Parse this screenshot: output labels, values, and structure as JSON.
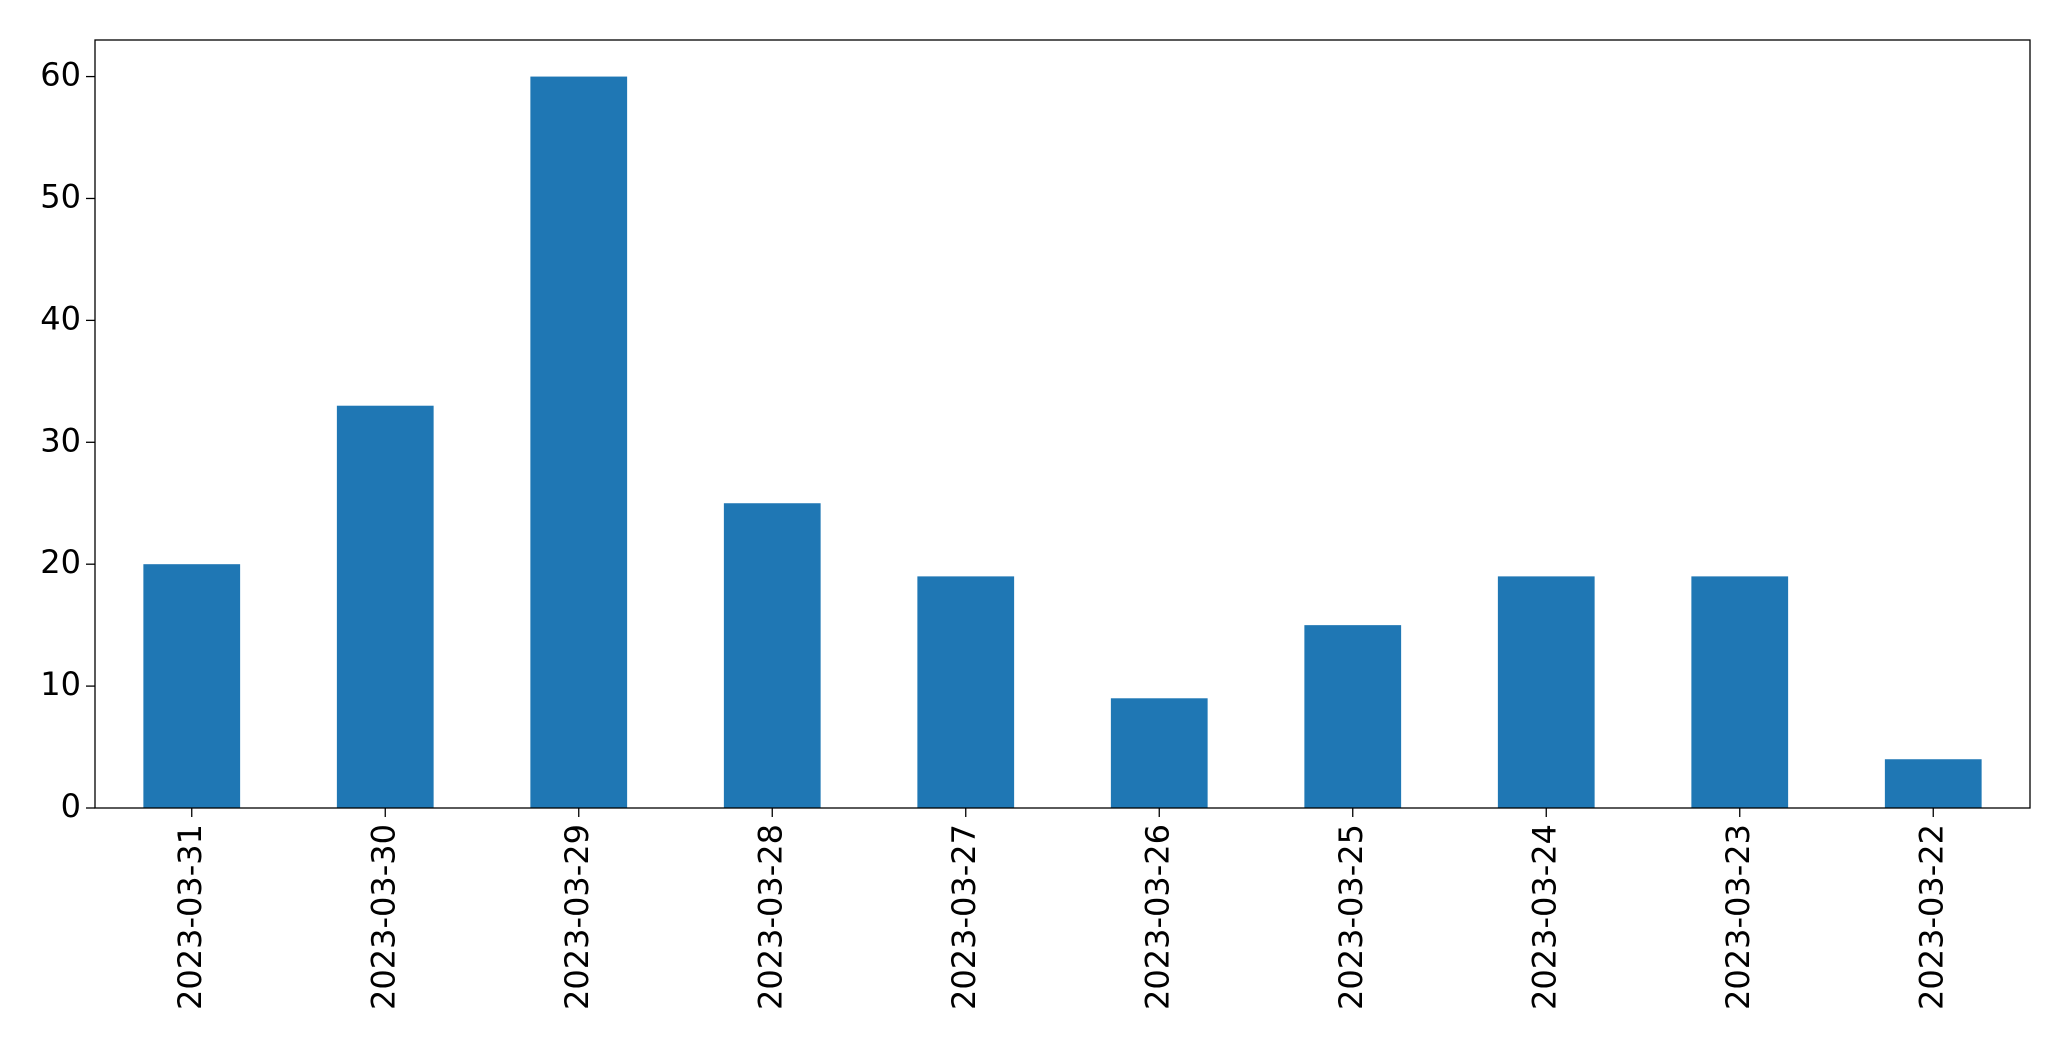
{
  "chart_data": {
    "type": "bar",
    "categories": [
      "2023-03-31",
      "2023-03-30",
      "2023-03-29",
      "2023-03-28",
      "2023-03-27",
      "2023-03-26",
      "2023-03-25",
      "2023-03-24",
      "2023-03-23",
      "2023-03-22"
    ],
    "values": [
      20,
      33,
      60,
      25,
      19,
      9,
      15,
      19,
      19,
      4
    ],
    "color": "#1f77b4",
    "ylim": [
      0,
      63
    ],
    "yticks": [
      0,
      10,
      20,
      30,
      40,
      50,
      60
    ],
    "grid": false
  }
}
